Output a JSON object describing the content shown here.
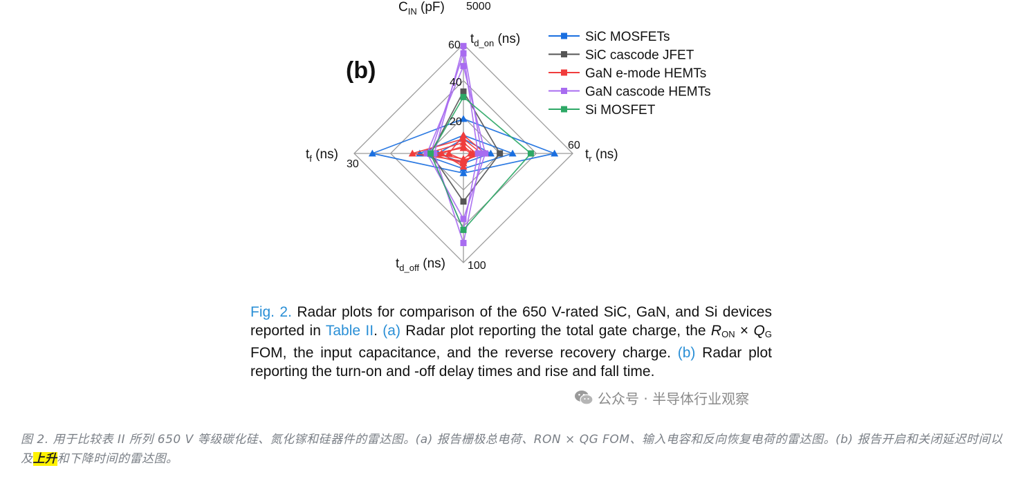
{
  "chart_data": {
    "type": "radar",
    "panel_label": "(b)",
    "top_cut_text": {
      "axis": "C",
      "sub": "IN",
      "unit": " (pF)",
      "tick": "5000"
    },
    "axes": [
      {
        "name": "t",
        "sub": "d_on",
        "unit": " (ns)",
        "max": 60
      },
      {
        "name": "t",
        "sub": "r",
        "unit": " (ns)",
        "max": 60
      },
      {
        "name": "t",
        "sub": "d_off",
        "unit": " (ns)",
        "max": 100
      },
      {
        "name": "t",
        "sub": "f",
        "unit": " (ns)",
        "max": 30
      }
    ],
    "axis_tick_labels": {
      "top": [
        "20",
        "40",
        "60"
      ],
      "right": "60",
      "bottom": "100",
      "left": "30"
    },
    "series": [
      {
        "name": "SiC MOSFETs",
        "color": "#1a6fe0",
        "marker": "triangle",
        "devices": [
          [
            19,
            50,
            18,
            25
          ],
          [
            10,
            27,
            14,
            12
          ],
          [
            8,
            15,
            9,
            7
          ]
        ]
      },
      {
        "name": "SiC cascode JFET",
        "color": "#555555",
        "marker": "square",
        "devices": [
          [
            34,
            20,
            44,
            9
          ]
        ]
      },
      {
        "name": "GaN e-mode HEMTs",
        "color": "#f03c3c",
        "marker": "triangle",
        "devices": [
          [
            8,
            10,
            7,
            14
          ],
          [
            6,
            7,
            9,
            10
          ],
          [
            4,
            5,
            12,
            6
          ],
          [
            10,
            12,
            6,
            4
          ],
          [
            3,
            4,
            5,
            8
          ]
        ]
      },
      {
        "name": "GaN cascode HEMTs",
        "color": "#a86cf0",
        "marker": "square",
        "devices": [
          [
            59,
            10,
            82,
            8
          ],
          [
            48,
            12,
            60,
            10
          ],
          [
            55,
            8,
            70,
            9
          ]
        ]
      },
      {
        "name": "Si MOSFET",
        "color": "#2da866",
        "marker": "square",
        "devices": [
          [
            31,
            37,
            70,
            9
          ]
        ]
      }
    ]
  },
  "caption": {
    "fig_ref": "Fig. 2.",
    "t1": " Radar plots for comparison of the 650 V-rated SiC, GaN, and Si devices reported in ",
    "table_ref": "Table II",
    "t2": ". ",
    "a_ref": "(a)",
    "t3": " Radar plot reporting the total gate charge, the ",
    "ron": "R",
    "ron_sub": "ON",
    "times": " × ",
    "qg": "Q",
    "qg_sub": "G",
    "t4": " FOM, the input capacitance, and the reverse recovery charge. ",
    "b_ref": "(b)",
    "t5": " Radar plot reporting the turn-on and -off delay times and rise and fall time."
  },
  "watermark": "公众号 · 半导体行业观察",
  "translation": {
    "before": "图 2. 用于比较表 II 所列 650 V 等级碳化硅、氮化镓和硅器件的雷达图。(a) 报告栅极总电荷、RON × QG FOM、输入电容和反向恢复电荷的雷达图。(b) 报告开启和关闭延迟时间以及",
    "highlight": "上升",
    "after": "和下降时间的雷达图。"
  }
}
